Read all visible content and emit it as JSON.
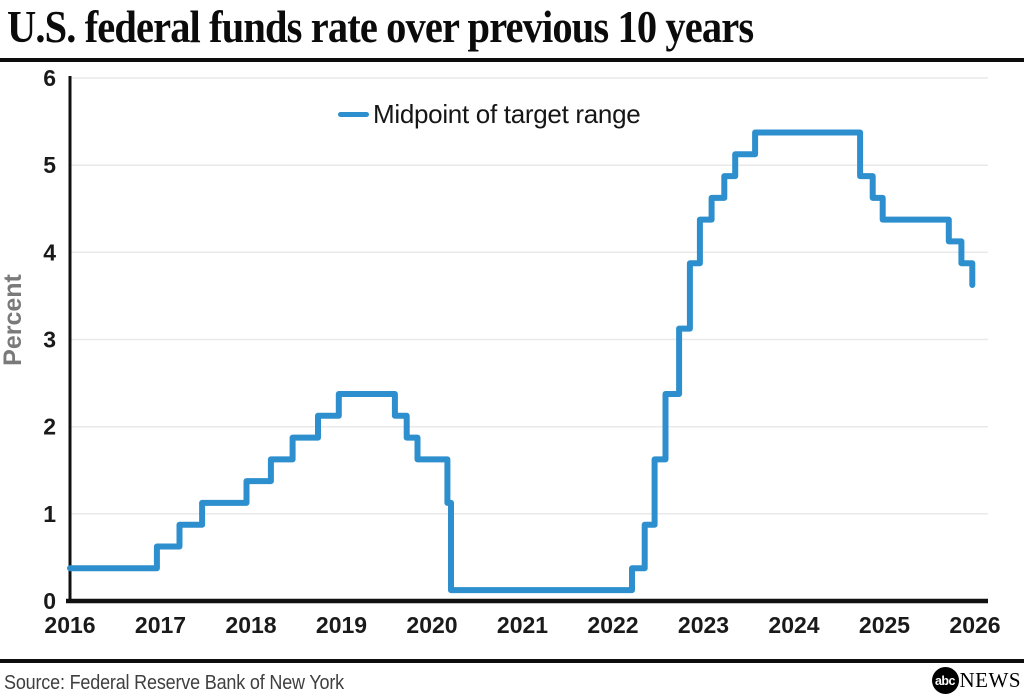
{
  "header": {
    "title": "U.S. federal funds rate over previous 10 years"
  },
  "footer": {
    "source": "Source: Federal Reserve Bank of New York",
    "logo_abc": "abc",
    "logo_news": "NEWS"
  },
  "colors": {
    "line": "#2e8fce",
    "grid": "#e9e9e9",
    "axis": "#111111",
    "axis_label": "#7a7a7a",
    "tick_label": "#1a1a1a"
  },
  "chart_data": {
    "type": "line",
    "step": "after",
    "title": "U.S. federal funds rate over previous 10 years",
    "legend_label": "Midpoint of target range",
    "legend_position": "top-center",
    "xlabel": "",
    "ylabel": "Percent",
    "unit": "percent",
    "ylim": [
      0,
      6
    ],
    "xlim": [
      2016,
      2026.15
    ],
    "yticks": [
      0,
      1,
      2,
      3,
      4,
      5,
      6
    ],
    "xticks": [
      2016,
      2017,
      2018,
      2019,
      2020,
      2021,
      2022,
      2023,
      2024,
      2025,
      2026
    ],
    "grid": "horizontal",
    "series": [
      {
        "name": "Midpoint of target range",
        "color": "#2e8fce",
        "points": [
          [
            2016.0,
            0.375
          ],
          [
            2016.96,
            0.625
          ],
          [
            2017.21,
            0.875
          ],
          [
            2017.46,
            1.125
          ],
          [
            2017.95,
            1.375
          ],
          [
            2018.22,
            1.625
          ],
          [
            2018.46,
            1.875
          ],
          [
            2018.74,
            2.125
          ],
          [
            2018.97,
            2.375
          ],
          [
            2019.59,
            2.125
          ],
          [
            2019.72,
            1.875
          ],
          [
            2019.84,
            1.625
          ],
          [
            2020.17,
            1.125
          ],
          [
            2020.21,
            0.125
          ],
          [
            2022.21,
            0.375
          ],
          [
            2022.35,
            0.875
          ],
          [
            2022.46,
            1.625
          ],
          [
            2022.58,
            2.375
          ],
          [
            2022.73,
            3.125
          ],
          [
            2022.85,
            3.875
          ],
          [
            2022.96,
            4.375
          ],
          [
            2023.09,
            4.625
          ],
          [
            2023.23,
            4.875
          ],
          [
            2023.35,
            5.125
          ],
          [
            2023.57,
            5.375
          ],
          [
            2024.73,
            4.875
          ],
          [
            2024.87,
            4.625
          ],
          [
            2024.98,
            4.375
          ],
          [
            2025.71,
            4.125
          ],
          [
            2025.85,
            3.875
          ],
          [
            2025.97,
            3.625
          ]
        ]
      }
    ]
  }
}
